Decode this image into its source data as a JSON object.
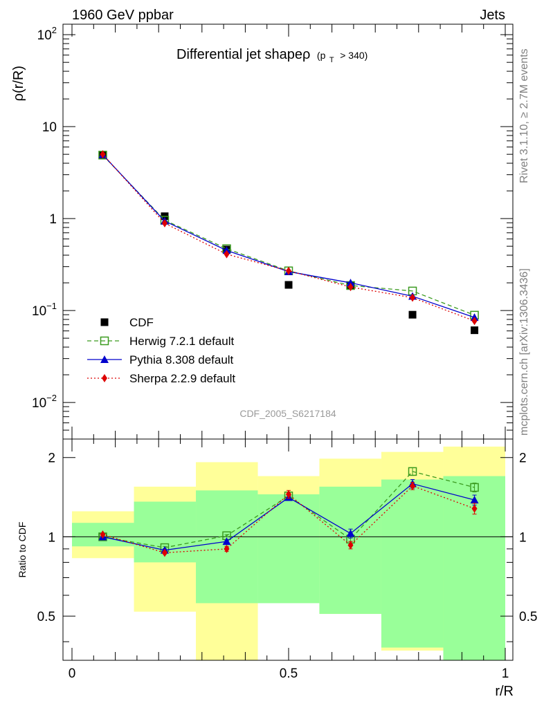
{
  "header": {
    "left": "1960 GeV ppbar",
    "right": "Jets"
  },
  "side_text": {
    "top": "Rivet 3.1.10, ≥ 2.7M events",
    "bottom": "mcplots.cern.ch [arXiv:1306.3436]"
  },
  "analysis_tag": "CDF_2005_S6217184",
  "chart_data": [
    {
      "type": "line",
      "title": "Differential jet shapeρ (p_T > 340)",
      "title_main": "Differential jet shapeρ",
      "title_sub_pre": "(p",
      "title_sub_T": "T",
      "title_sub_post": "> 340)",
      "ylabel": "ρ(r/R)",
      "xlabel": "",
      "yscale": "log",
      "ylim": [
        0.004,
        130
      ],
      "xlim": [
        0,
        1
      ],
      "yticks": [
        {
          "v": 0.01,
          "base": "10",
          "exp": "−2"
        },
        {
          "v": 0.1,
          "base": "10",
          "exp": "−1"
        },
        {
          "v": 1,
          "base": "1",
          "exp": ""
        },
        {
          "v": 10,
          "base": "10",
          "exp": ""
        },
        {
          "v": 100,
          "base": "10",
          "exp": "2"
        }
      ],
      "x": [
        0.071,
        0.214,
        0.357,
        0.5,
        0.643,
        0.786,
        0.929
      ],
      "legend_position": "bottom-left",
      "series": [
        {
          "name": "CDF",
          "color": "#000000",
          "marker": "square",
          "style": "points",
          "values": [
            4.9,
            1.06,
            0.46,
            0.19,
            0.185,
            0.09,
            0.061
          ]
        },
        {
          "name": "Herwig 7.2.1 default",
          "color": "#3a9a1f",
          "marker": "open-square",
          "style": "dashed",
          "values": [
            4.9,
            0.96,
            0.47,
            0.27,
            0.187,
            0.163,
            0.089
          ]
        },
        {
          "name": "Pythia 8.308 default",
          "color": "#0000cc",
          "marker": "triangle",
          "style": "solid",
          "values": [
            4.95,
            0.94,
            0.45,
            0.265,
            0.2,
            0.143,
            0.084
          ]
        },
        {
          "name": "Sherpa 2.2.9 default",
          "color": "#dd0000",
          "marker": "diamond",
          "style": "dotted",
          "values": [
            5.0,
            0.89,
            0.41,
            0.27,
            0.18,
            0.138,
            0.077
          ]
        }
      ]
    },
    {
      "type": "line",
      "ylabel": "Ratio to CDF",
      "xlabel": "r/R",
      "yscale": "log",
      "ylim": [
        0.34,
        2.35
      ],
      "xlim": [
        0,
        1
      ],
      "yticks": [
        {
          "v": 0.5,
          "label": "0.5"
        },
        {
          "v": 1,
          "label": "1"
        },
        {
          "v": 2,
          "label": "2"
        }
      ],
      "xticks": [
        {
          "v": 0,
          "label": "0"
        },
        {
          "v": 0.5,
          "label": "0.5"
        },
        {
          "v": 1,
          "label": "1"
        }
      ],
      "bands": {
        "edges": [
          0,
          0.143,
          0.286,
          0.429,
          0.571,
          0.714,
          0.857,
          1.0
        ],
        "outer": {
          "color": "#ffff99",
          "lo": [
            0.83,
            0.52,
            0.34,
            0.72,
            0.51,
            0.37,
            0.34
          ],
          "hi": [
            1.25,
            1.55,
            1.92,
            1.7,
            1.98,
            2.1,
            2.2
          ]
        },
        "inner": {
          "color": "#99ff99",
          "lo": [
            0.92,
            0.8,
            0.56,
            0.56,
            0.51,
            0.38,
            0.34
          ],
          "hi": [
            1.13,
            1.36,
            1.5,
            1.45,
            1.55,
            1.65,
            1.7
          ]
        }
      },
      "x": [
        0.071,
        0.214,
        0.357,
        0.5,
        0.643,
        0.786,
        0.929
      ],
      "series": [
        {
          "name": "Herwig 7.2.1 default",
          "color": "#3a9a1f",
          "marker": "open-square",
          "style": "dashed",
          "values": [
            1.0,
            0.91,
            1.01,
            1.43,
            0.98,
            1.77,
            1.54
          ],
          "err": [
            0.01,
            0.01,
            0.01,
            0.03,
            0.02,
            0.06,
            0.06
          ]
        },
        {
          "name": "Pythia 8.308 default",
          "color": "#0000cc",
          "marker": "triangle",
          "style": "solid",
          "values": [
            1.0,
            0.89,
            0.96,
            1.41,
            1.03,
            1.59,
            1.38
          ],
          "err": [
            0.01,
            0.01,
            0.01,
            0.03,
            0.04,
            0.06,
            0.06
          ]
        },
        {
          "name": "Sherpa 2.2.9 default",
          "color": "#dd0000",
          "marker": "diamond",
          "style": "dotted",
          "values": [
            1.02,
            0.87,
            0.9,
            1.45,
            0.93,
            1.56,
            1.28
          ],
          "err": [
            0.01,
            0.01,
            0.02,
            0.05,
            0.03,
            0.05,
            0.06
          ]
        }
      ]
    }
  ]
}
